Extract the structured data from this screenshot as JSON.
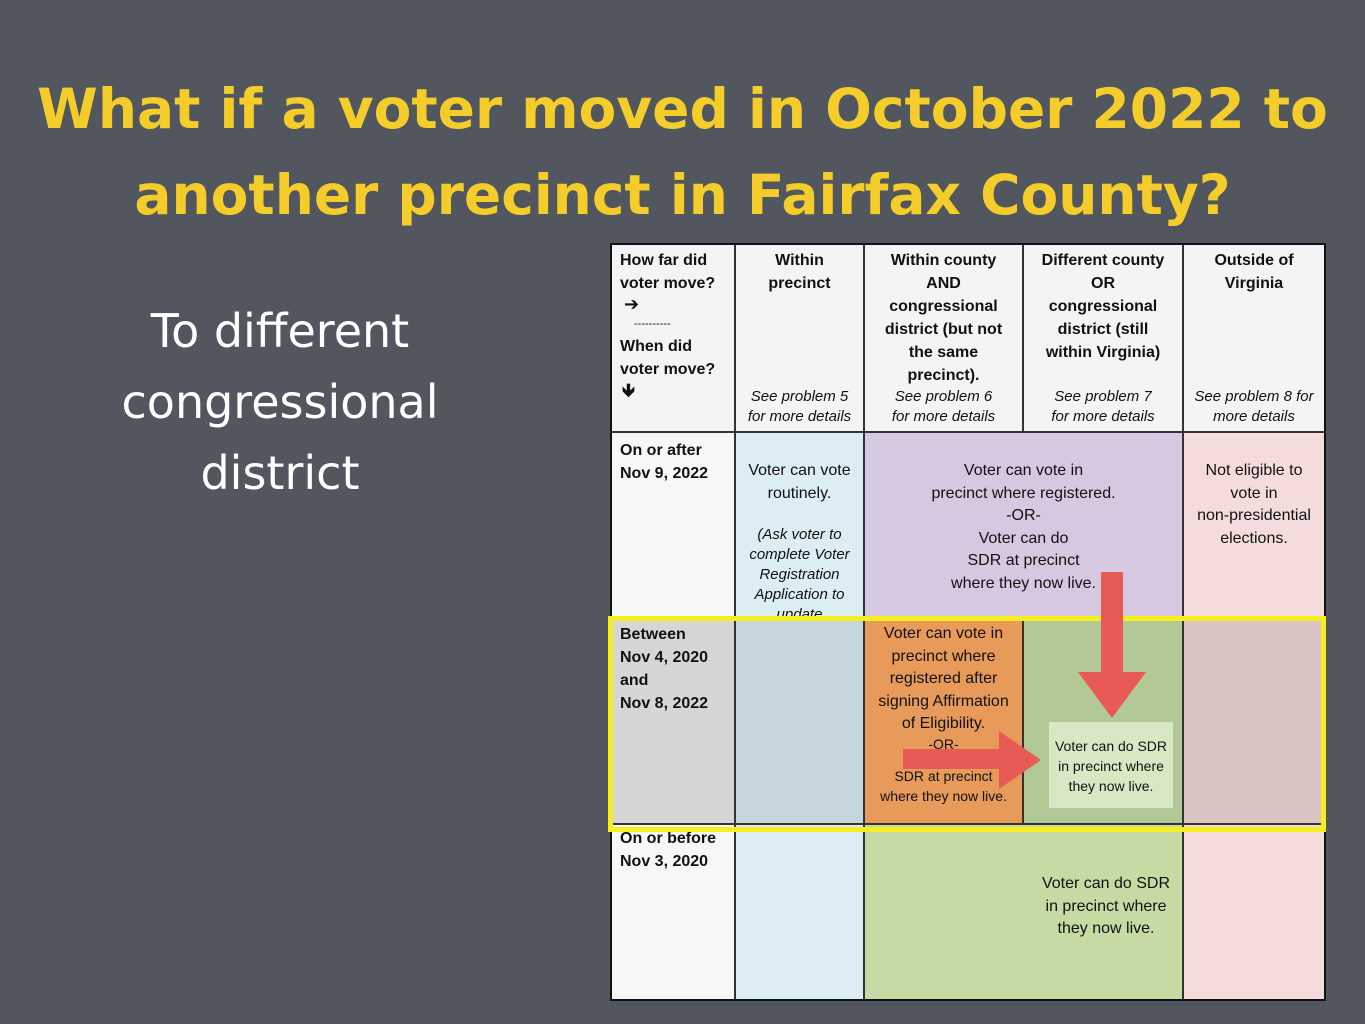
{
  "title": {
    "line1": "What if a voter moved in October 2022 to",
    "line2": "another precinct in Fairfax County?"
  },
  "subtitle": [
    "To different",
    "congressional",
    "district"
  ],
  "table": {
    "corner": {
      "q1": "How far did voter move?",
      "arrow_right": "➔",
      "divider": "----------",
      "q2": "When did voter move?",
      "arrow_down": "🡻"
    },
    "columns": [
      {
        "label": "Within precinct",
        "note": "See problem 5 for more details"
      },
      {
        "label": "Within county AND congressional district (but not the same precinct).",
        "note": "See problem 6 for more details"
      },
      {
        "label": "Different county OR congressional district (still within Virginia)",
        "note": "See problem 7 for more details"
      },
      {
        "label": "Outside of Virginia",
        "note": "See problem 8 for more details"
      }
    ],
    "rows": [
      {
        "label": [
          "On or after",
          "Nov 9, 2022"
        ]
      },
      {
        "label": [
          "Between",
          "Nov 4, 2020",
          "and",
          "Nov 8, 2022"
        ]
      },
      {
        "label": [
          "On or before",
          "Nov 3, 2020"
        ]
      }
    ],
    "cells": {
      "within_precinct_main": "Voter can vote routinely.",
      "within_precinct_note": "(Ask voter to complete Voter Registration Application to update registration.)",
      "row1_purple": [
        "Voter can vote in",
        "precinct where registered.",
        "-OR-",
        "Voter can do",
        "SDR at precinct",
        "where they now live."
      ],
      "row1_outside": [
        "Not eligible to",
        "vote in",
        "non-presidential",
        "elections."
      ],
      "row2_orange": [
        "Voter can vote in",
        "precinct where",
        "registered after",
        "signing Affirmation",
        "of Eligibility.",
        "-OR-",
        "Voter can do",
        "SDR at precinct",
        "where they now live."
      ],
      "row2_sdr": [
        "Voter can do SDR",
        "in precinct where",
        "they now live."
      ],
      "row3_green": [
        "Voter can do SDR",
        "in precinct where",
        "they now live."
      ]
    }
  },
  "colors": {
    "background": "#52565e",
    "title": "#f5cd2a",
    "highlight": "#f4ef1d",
    "arrow": "#e85a55",
    "blue": "#dceef4",
    "purple": "#d6c8e0",
    "pink": "#f4dcdc",
    "orange": "#e89a5a",
    "green": "#c5dba3"
  }
}
